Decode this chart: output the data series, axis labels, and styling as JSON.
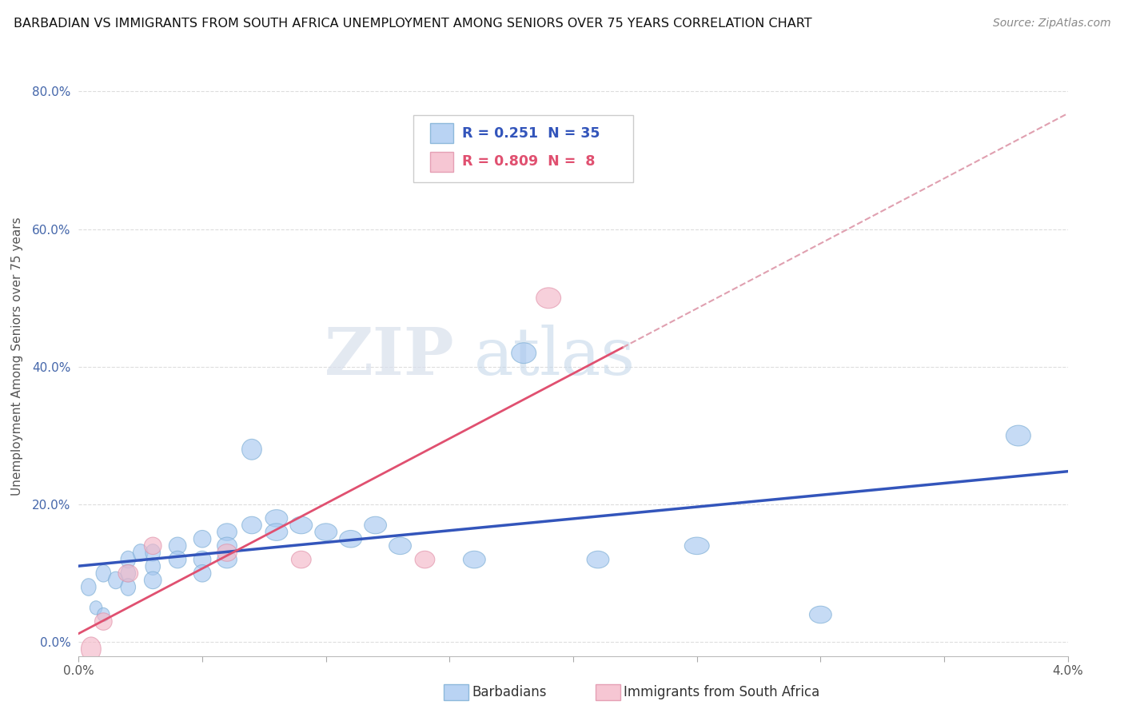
{
  "title": "BARBADIAN VS IMMIGRANTS FROM SOUTH AFRICA UNEMPLOYMENT AMONG SENIORS OVER 75 YEARS CORRELATION CHART",
  "source": "Source: ZipAtlas.com",
  "ylabel": "Unemployment Among Seniors over 75 years",
  "xmin": 0.0,
  "xmax": 0.04,
  "ymin": -0.02,
  "ymax": 0.85,
  "yticks": [
    0.0,
    0.2,
    0.4,
    0.6,
    0.8
  ],
  "ytick_labels": [
    "0.0%",
    "20.0%",
    "40.0%",
    "60.0%",
    "80.0%"
  ],
  "xtick_labels": [
    "0.0%",
    "",
    "",
    "",
    "",
    "",
    "",
    "",
    "4.0%"
  ],
  "legend_blue": {
    "R": 0.251,
    "N": 35,
    "label": "Barbadians"
  },
  "legend_pink": {
    "R": 0.809,
    "N": 8,
    "label": "Immigrants from South Africa"
  },
  "barbadian_x": [
    0.0004,
    0.0007,
    0.001,
    0.001,
    0.0015,
    0.002,
    0.002,
    0.002,
    0.0025,
    0.003,
    0.003,
    0.003,
    0.004,
    0.004,
    0.005,
    0.005,
    0.005,
    0.006,
    0.006,
    0.006,
    0.007,
    0.007,
    0.008,
    0.008,
    0.009,
    0.01,
    0.011,
    0.012,
    0.013,
    0.016,
    0.018,
    0.021,
    0.025,
    0.03,
    0.038
  ],
  "barbadian_y": [
    0.08,
    0.05,
    0.1,
    0.04,
    0.09,
    0.12,
    0.1,
    0.08,
    0.13,
    0.13,
    0.11,
    0.09,
    0.14,
    0.12,
    0.15,
    0.12,
    0.1,
    0.16,
    0.14,
    0.12,
    0.17,
    0.28,
    0.18,
    0.16,
    0.17,
    0.16,
    0.15,
    0.17,
    0.14,
    0.12,
    0.42,
    0.12,
    0.14,
    0.04,
    0.3
  ],
  "barbadian_wx": [
    0.0006,
    0.0005,
    0.0006,
    0.0005,
    0.0006,
    0.0006,
    0.0006,
    0.0006,
    0.0006,
    0.0006,
    0.0006,
    0.0007,
    0.0007,
    0.0007,
    0.0007,
    0.0007,
    0.0007,
    0.0008,
    0.0008,
    0.0008,
    0.0008,
    0.0008,
    0.0009,
    0.0009,
    0.0009,
    0.0009,
    0.0009,
    0.0009,
    0.0009,
    0.0009,
    0.001,
    0.0009,
    0.001,
    0.0009,
    0.001
  ],
  "barbadian_wy": [
    0.025,
    0.02,
    0.025,
    0.02,
    0.025,
    0.025,
    0.025,
    0.025,
    0.025,
    0.025,
    0.025,
    0.025,
    0.025,
    0.025,
    0.025,
    0.025,
    0.025,
    0.025,
    0.025,
    0.025,
    0.025,
    0.03,
    0.025,
    0.025,
    0.025,
    0.025,
    0.025,
    0.025,
    0.025,
    0.025,
    0.03,
    0.025,
    0.025,
    0.025,
    0.03
  ],
  "sa_x": [
    0.0005,
    0.001,
    0.002,
    0.003,
    0.006,
    0.009,
    0.014,
    0.019
  ],
  "sa_y": [
    -0.01,
    0.03,
    0.1,
    0.14,
    0.13,
    0.12,
    0.12,
    0.5
  ],
  "sa_wx": [
    0.0008,
    0.0007,
    0.0008,
    0.0007,
    0.0008,
    0.0008,
    0.0008,
    0.001
  ],
  "sa_wy": [
    0.035,
    0.025,
    0.025,
    0.025,
    0.025,
    0.025,
    0.025,
    0.03
  ],
  "blue_scatter_color": "#A8C8F0",
  "blue_scatter_edge": "#7BADD4",
  "pink_scatter_color": "#F4B8C8",
  "pink_scatter_edge": "#E090A8",
  "blue_line_color": "#3355BB",
  "pink_line_color": "#E05070",
  "dashed_line_color": "#E0A0B0",
  "background_color": "#FFFFFF",
  "grid_color": "#DDDDDD",
  "watermark_zip": "ZIP",
  "watermark_atlas": "atlas",
  "watermark_color_zip": "#D0D8E8",
  "watermark_color_atlas": "#C8D8E8"
}
